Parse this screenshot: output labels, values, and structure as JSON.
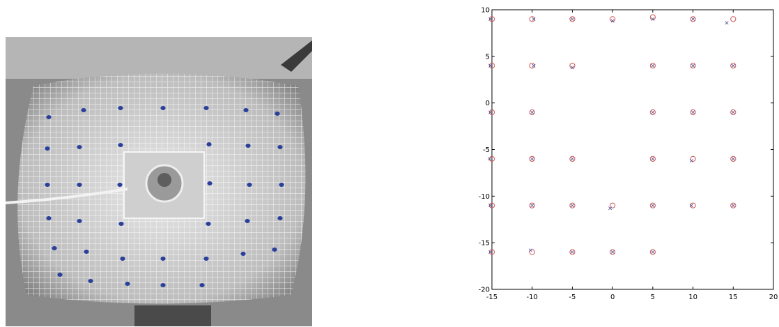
{
  "colors": {
    "photo_marker": "#2a3f9a",
    "photo_background": "#8f8f8f",
    "circle_marker": "#cc5555",
    "x_marker": "#5a5a9a",
    "axis": "#000000"
  },
  "photo": {
    "marker_count": 38
  },
  "chart_data": {
    "type": "scatter",
    "xlim": [
      -15,
      20
    ],
    "ylim": [
      -20,
      10
    ],
    "xticks": [
      -15,
      -10,
      -5,
      0,
      5,
      10,
      15,
      20
    ],
    "yticks": [
      10,
      5,
      0,
      -5,
      -10,
      -15,
      -20
    ],
    "x_tick_labels": [
      "-15",
      "-10",
      "-5",
      "0",
      "5",
      "10",
      "15",
      "20"
    ],
    "y_tick_labels": [
      "10",
      "5",
      "0",
      "-5",
      "-10",
      "-15",
      "-20"
    ],
    "grid": false,
    "legend": "none",
    "title": "",
    "xlabel": "",
    "ylabel": "",
    "series": [
      {
        "marker": "circle",
        "points": [
          [
            -15,
            9
          ],
          [
            -10,
            9
          ],
          [
            -5,
            9
          ],
          [
            0,
            9
          ],
          [
            5,
            9.2
          ],
          [
            10,
            9
          ],
          [
            15,
            9
          ],
          [
            -15,
            4
          ],
          [
            -10,
            4
          ],
          [
            -5,
            4
          ],
          [
            5,
            4
          ],
          [
            10,
            4
          ],
          [
            15,
            4
          ],
          [
            -15,
            -1
          ],
          [
            -10,
            -1
          ],
          [
            5,
            -1
          ],
          [
            10,
            -1
          ],
          [
            15,
            -1
          ],
          [
            -15,
            -6
          ],
          [
            -10,
            -6
          ],
          [
            -5,
            -6
          ],
          [
            5,
            -6
          ],
          [
            10,
            -6
          ],
          [
            15,
            -6
          ],
          [
            -15,
            -11
          ],
          [
            -10,
            -11
          ],
          [
            -5,
            -11
          ],
          [
            0,
            -11
          ],
          [
            5,
            -11
          ],
          [
            10,
            -11
          ],
          [
            15,
            -11
          ],
          [
            -15,
            -16
          ],
          [
            -10,
            -16
          ],
          [
            -5,
            -16
          ],
          [
            0,
            -16
          ],
          [
            5,
            -16
          ]
        ]
      },
      {
        "marker": "x",
        "points": [
          [
            -15.2,
            9
          ],
          [
            -9.8,
            9
          ],
          [
            -5,
            9
          ],
          [
            0,
            8.8
          ],
          [
            5,
            9
          ],
          [
            10,
            9
          ],
          [
            14.2,
            8.6
          ],
          [
            -15.2,
            4
          ],
          [
            -9.8,
            4
          ],
          [
            -5,
            3.8
          ],
          [
            5,
            4
          ],
          [
            10,
            4
          ],
          [
            15,
            4
          ],
          [
            -15.2,
            -1
          ],
          [
            -10,
            -1
          ],
          [
            5,
            -1
          ],
          [
            10,
            -1
          ],
          [
            15,
            -1
          ],
          [
            -15.3,
            -6
          ],
          [
            -10,
            -6
          ],
          [
            -5,
            -6
          ],
          [
            5,
            -6
          ],
          [
            9.8,
            -6.2
          ],
          [
            15,
            -6
          ],
          [
            -15.2,
            -11
          ],
          [
            -10,
            -11
          ],
          [
            -5,
            -11
          ],
          [
            -0.3,
            -11.3
          ],
          [
            5,
            -11
          ],
          [
            9.8,
            -11
          ],
          [
            15,
            -11
          ],
          [
            -15.2,
            -16
          ],
          [
            -10.2,
            -15.8
          ],
          [
            -5,
            -16
          ],
          [
            0,
            -16
          ],
          [
            5,
            -16
          ]
        ]
      }
    ]
  }
}
